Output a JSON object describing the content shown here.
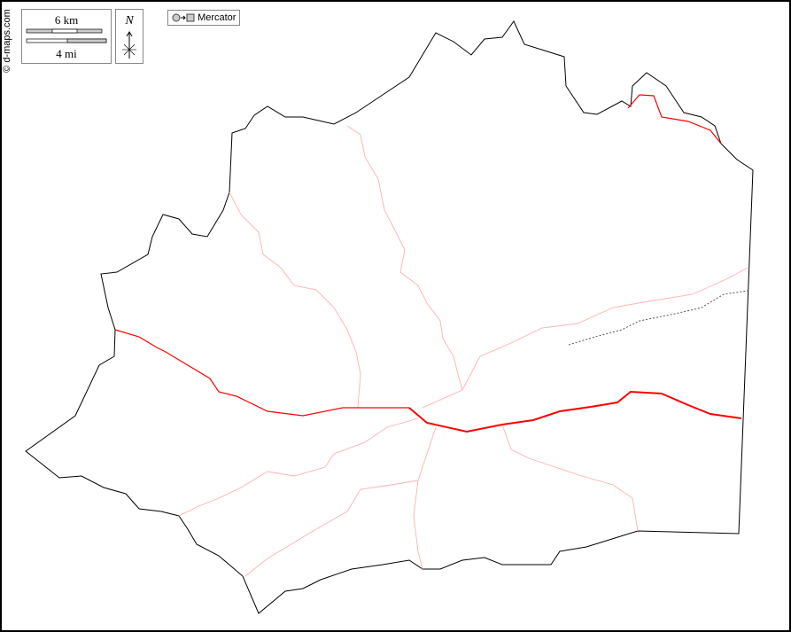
{
  "credit": "© d-maps.com",
  "scale": {
    "km_label": "6 km",
    "mi_label": "4 mi"
  },
  "north_arrow": {
    "label": "N"
  },
  "projection": {
    "label": "Mercator",
    "icon": "circle-to-square-icon"
  },
  "colors": {
    "boundary": "#000000",
    "main_river": "#ff0000",
    "tributary": "#ffb0b0",
    "border_dotted": "#555555"
  }
}
